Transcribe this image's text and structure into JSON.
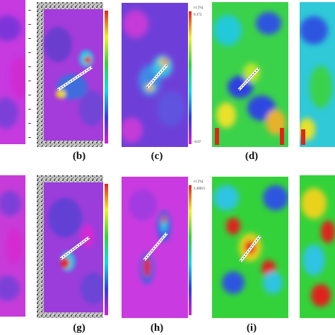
{
  "captions": {
    "b": "(b)",
    "c": "(c)",
    "d": "(d)",
    "g": "(g)",
    "h": "(h)",
    "i": "(i)"
  },
  "colorbars": {
    "b_title": "εxx [%]",
    "c_title": "ε1 [%]",
    "c_max": "0.372",
    "c_min": "-0.07",
    "h_title": "ε1 [%]",
    "h_max": "2.38015"
  },
  "colors": {
    "magenta": "#d21fd6",
    "purple": "#7a2bd6",
    "blue": "#2f3fe0",
    "cyan": "#19d6e8",
    "green": "#34d23a",
    "yellow": "#f1f02a",
    "red": "#e0241c",
    "speckle_bg": "#bdbdbd"
  }
}
